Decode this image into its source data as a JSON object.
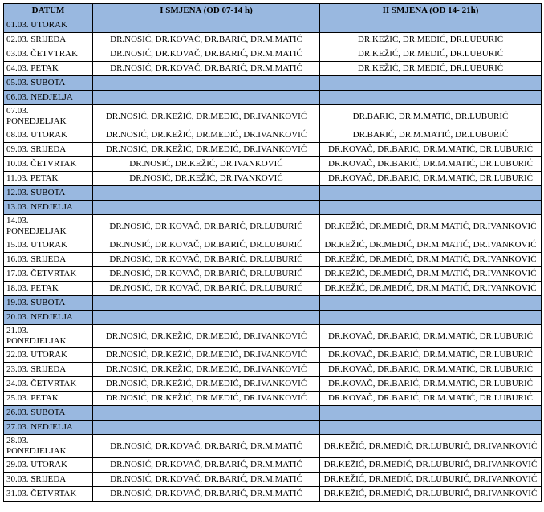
{
  "header": {
    "datum": "DATUM",
    "shift1": "I SMJENA (OD 07-14 h)",
    "shift2": "II SMJENA (OD 14- 21h)"
  },
  "rows": [
    {
      "date": "01.03. UTORAK",
      "s1": "",
      "s2": "",
      "weekend": true
    },
    {
      "date": "02.03. SRIJEDA",
      "s1": "DR.NOSIĆ, DR.KOVAČ, DR.BARIĆ, DR.M.MATIĆ",
      "s2": "DR.KEŽIĆ, DR.MEDIĆ, DR.LUBURIĆ"
    },
    {
      "date": "03.03. ČETVTRAK",
      "s1": "DR.NOSIĆ, DR.KOVAČ, DR.BARIĆ, DR.M.MATIĆ",
      "s2": "DR.KEŽIĆ, DR.MEDIĆ, DR.LUBURIĆ"
    },
    {
      "date": "04.03. PETAK",
      "s1": "DR.NOSIĆ, DR.KOVAČ, DR.BARIĆ, DR.M.MATIĆ",
      "s2": "DR.KEŽIĆ, DR.MEDIĆ, DR.LUBURIĆ"
    },
    {
      "date": "05.03. SUBOTA",
      "s1": "",
      "s2": "",
      "weekend": true
    },
    {
      "date": "06.03. NEDJELJA",
      "s1": "",
      "s2": "",
      "weekend": true
    },
    {
      "date": "07.03. PONEDJELJAK",
      "s1": "DR.NOSIĆ, DR.KEŽIĆ, DR.MEDIĆ, DR.IVANKOVIĆ",
      "s2": "DR.BARIĆ, DR.M.MATIĆ, DR.LUBURIĆ",
      "tall": true
    },
    {
      "date": "08.03. UTORAK",
      "s1": "DR.NOSIĆ, DR.KEŽIĆ, DR.MEDIĆ, DR.IVANKOVIĆ",
      "s2": "DR.BARIĆ, DR.M.MATIĆ, DR.LUBURIĆ"
    },
    {
      "date": "09.03. SRIJEDA",
      "s1": "DR.NOSIĆ, DR.KEŽIĆ, DR.MEDIĆ, DR.IVANKOVIĆ",
      "s2": "DR.KOVAČ, DR.BARIĆ, DR.M.MATIĆ, DR.LUBURIĆ"
    },
    {
      "date": "10.03. ČETVRTAK",
      "s1": "DR.NOSIĆ, DR.KEŽIĆ, DR.IVANKOVIĆ",
      "s2": "DR.KOVAČ, DR.BARIĆ, DR.M.MATIĆ, DR.LUBURIĆ"
    },
    {
      "date": "11.03. PETAK",
      "s1": "DR.NOSIĆ, DR.KEŽIĆ, DR.IVANKOVIĆ",
      "s2": "DR.KOVAČ, DR.BARIĆ, DR.M.MATIĆ, DR.LUBURIĆ"
    },
    {
      "date": "12.03. SUBOTA",
      "s1": "",
      "s2": "",
      "weekend": true
    },
    {
      "date": "13.03. NEDJELJA",
      "s1": "",
      "s2": "",
      "weekend": true
    },
    {
      "date": "14.03. PONEDJELJAK",
      "s1": "DR.NOSIĆ, DR.KOVAČ, DR.BARIĆ, DR.LUBURIĆ",
      "s2": "DR.KEŽIĆ, DR.MEDIĆ, DR.M.MATIĆ, DR.IVANKOVIĆ",
      "tall": true
    },
    {
      "date": "15.03. UTORAK",
      "s1": "DR.NOSIĆ, DR.KOVAČ, DR.BARIĆ, DR.LUBURIĆ",
      "s2": "DR.KEŽIĆ, DR.MEDIĆ, DR.M.MATIĆ, DR.IVANKOVIĆ"
    },
    {
      "date": "16.03. SRIJEDA",
      "s1": "DR.NOSIĆ, DR.KOVAČ, DR.BARIĆ, DR.LUBURIĆ",
      "s2": "DR.KEŽIĆ, DR.MEDIĆ, DR.M.MATIĆ, DR.IVANKOVIĆ"
    },
    {
      "date": "17.03. ČETVRTAK",
      "s1": "DR.NOSIĆ, DR.KOVAČ, DR.BARIĆ, DR.LUBURIĆ",
      "s2": "DR.KEŽIĆ, DR.MEDIĆ, DR.M.MATIĆ, DR.IVANKOVIĆ"
    },
    {
      "date": "18.03. PETAK",
      "s1": "DR.NOSIĆ, DR.KOVAČ, DR.BARIĆ, DR.LUBURIĆ",
      "s2": "DR.KEŽIĆ, DR.MEDIĆ, DR.M.MATIĆ, DR.IVANKOVIĆ"
    },
    {
      "date": "19.03. SUBOTA",
      "s1": "",
      "s2": "",
      "weekend": true
    },
    {
      "date": "20.03. NEDJELJA",
      "s1": "",
      "s2": "",
      "weekend": true
    },
    {
      "date": "21.03. PONEDJELJAK",
      "s1": "DR.NOSIĆ, DR.KEŽIĆ, DR.MEDIĆ, DR.IVANKOVIĆ",
      "s2": "DR.KOVAČ, DR.BARIĆ, DR.M.MATIĆ, DR.LUBURIĆ",
      "tall": true
    },
    {
      "date": "22.03. UTORAK",
      "s1": "DR.NOSIĆ, DR.KEŽIĆ, DR.MEDIĆ, DR.IVANKOVIĆ",
      "s2": "DR.KOVAČ, DR.BARIĆ, DR.M.MATIĆ, DR.LUBURIĆ"
    },
    {
      "date": "23.03. SRIJEDA",
      "s1": "DR.NOSIĆ, DR.KEŽIĆ, DR.MEDIĆ, DR.IVANKOVIĆ",
      "s2": "DR.KOVAČ, DR.BARIĆ, DR.M.MATIĆ, DR.LUBURIĆ"
    },
    {
      "date": "24.03. ČETVRTAK",
      "s1": "DR.NOSIĆ, DR.KEŽIĆ, DR.MEDIĆ, DR.IVANKOVIĆ",
      "s2": "DR.KOVAČ, DR.BARIĆ, DR.M.MATIĆ, DR.LUBURIĆ"
    },
    {
      "date": "25.03. PETAK",
      "s1": "DR.NOSIĆ, DR.KEŽIĆ, DR.MEDIĆ, DR.IVANKOVIĆ",
      "s2": "DR.KOVAČ, DR.BARIĆ, DR.M.MATIĆ, DR.LUBURIĆ"
    },
    {
      "date": "26.03. SUBOTA",
      "s1": "",
      "s2": "",
      "weekend": true
    },
    {
      "date": "27.03. NEDJELJA",
      "s1": "",
      "s2": "",
      "weekend": true
    },
    {
      "date": "28.03. PONEDJELJAK",
      "s1": "DR.NOSIĆ, DR.KOVAČ, DR.BARIĆ, DR.M.MATIĆ",
      "s2": "DR.KEŽIĆ, DR.MEDIĆ, DR.LUBURIĆ, DR.IVANKOVIĆ",
      "tall": true
    },
    {
      "date": "29.03. UTORAK",
      "s1": "DR.NOSIĆ, DR.KOVAČ, DR.BARIĆ, DR.M.MATIĆ",
      "s2": "DR.KEŽIĆ, DR.MEDIĆ, DR.LUBURIĆ, DR.IVANKOVIĆ"
    },
    {
      "date": "30.03. SRIJEDA",
      "s1": "DR.NOSIĆ, DR.KOVAČ, DR.BARIĆ, DR.M.MATIĆ",
      "s2": "DR.KEŽIĆ, DR.MEDIĆ, DR.LUBURIĆ, DR.IVANKOVIĆ"
    },
    {
      "date": "31.03. ČETVRTAK",
      "s1": "DR.NOSIĆ, DR.KOVAČ, DR.BARIĆ, DR.M.MATIĆ",
      "s2": "DR.KEŽIĆ, DR.MEDIĆ, DR.LUBURIĆ, DR.IVANKOVIĆ"
    }
  ]
}
